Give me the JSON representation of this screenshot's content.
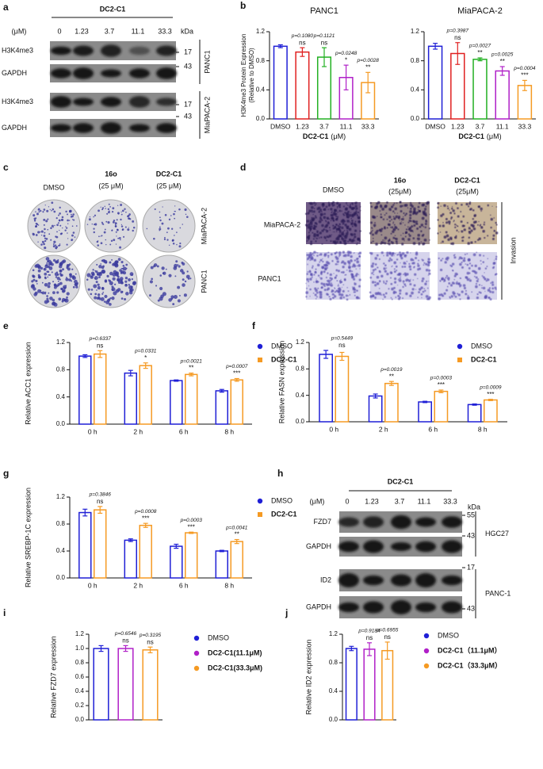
{
  "figure": {
    "panel_labels": [
      "a",
      "b",
      "c",
      "d",
      "e",
      "f",
      "g",
      "h",
      "i",
      "j"
    ],
    "blot_a": {
      "title": "DC2-C1",
      "unit": "(μM)",
      "concentrations": [
        "0",
        "1.23",
        "3.7",
        "11.1",
        "33.3"
      ],
      "kda": "kDa",
      "rows": [
        {
          "label": "H3K4me3",
          "kda": "17"
        },
        {
          "label": "GAPDH",
          "kda": "43"
        },
        {
          "label": "H3K4me3",
          "kda": "17"
        },
        {
          "label": "GAPDH",
          "kda": "43"
        }
      ],
      "groups": [
        "PANC1",
        "MiaPACA-2"
      ]
    },
    "colony": {
      "conditions": [
        [
          "DMSO"
        ],
        [
          "16o",
          "(25 μM)"
        ],
        [
          "DC2-C1",
          "(25 μM)"
        ]
      ],
      "cell_lines": [
        "MiaPACA-2",
        "PANC1"
      ]
    },
    "invasion": {
      "conditions": [
        [
          "DMSO"
        ],
        [
          "16o",
          "(25μM)"
        ],
        [
          "DC2-C1",
          "(25μM)"
        ]
      ],
      "cell_lines": [
        "MiaPACA-2",
        "PANC1"
      ],
      "assay": "Invasion"
    },
    "blot_h": {
      "title": "DC2-C1",
      "unit": "(μM)",
      "concentrations": [
        "0",
        "1.23",
        "3.7",
        "11.1",
        "33.3"
      ],
      "kda": "kDa",
      "rows": [
        {
          "label": "FZD7",
          "kda": "55"
        },
        {
          "label": "GAPDH",
          "kda": "43"
        },
        {
          "label": "ID2",
          "kda": "17"
        },
        {
          "label": "GAPDH",
          "kda": "43"
        }
      ],
      "groups": [
        "HGC27",
        "PANC-1"
      ]
    }
  },
  "chart_data": [
    {
      "type": "bar",
      "title": "PANC1",
      "y_label": [
        "H3K4me3 Protein Expression",
        "(Relative to DMSO)"
      ],
      "x_label": [
        "DC2-C1",
        "(μM)"
      ],
      "categories": [
        "DMSO",
        "1.23",
        "3.7",
        "11.1",
        "33.3"
      ],
      "values": [
        1.0,
        0.92,
        0.85,
        0.57,
        0.5
      ],
      "errors": [
        0.02,
        0.06,
        0.13,
        0.17,
        0.14
      ],
      "colors": [
        "#1f1fd6",
        "#e02020",
        "#22b022",
        "#b020c8",
        "#f59a23"
      ],
      "p_values": [
        null,
        "p=0.1080",
        "p=0.1121",
        "p=0.0248",
        "p=0.0028"
      ],
      "significance": [
        null,
        "ns",
        "ns",
        "*",
        "**"
      ],
      "ylim": [
        0,
        1.2
      ],
      "yticks": [
        {
          "value": 0,
          "label": "0.0"
        },
        0.4,
        0.8,
        1.2
      ]
    },
    {
      "type": "bar",
      "title": "MiaPACA-2",
      "x_label": [
        "DC2-C1",
        "(μM)"
      ],
      "categories": [
        "DMSO",
        "1.23",
        "3.7",
        "11.1",
        "33.3"
      ],
      "values": [
        1.0,
        0.9,
        0.82,
        0.66,
        0.46
      ],
      "errors": [
        0.04,
        0.15,
        0.02,
        0.06,
        0.07
      ],
      "colors": [
        "#1f1fd6",
        "#e02020",
        "#22b022",
        "#b020c8",
        "#f59a23"
      ],
      "p_values": [
        null,
        "p=0.3987",
        "p=0.0027",
        "p=0.0025",
        "p=0.0004"
      ],
      "significance": [
        null,
        "ns",
        "**",
        "**",
        "***"
      ],
      "ylim": [
        0,
        1.2
      ],
      "yticks": [
        {
          "value": 0,
          "label": "0.0"
        },
        0.4,
        0.8,
        1.2
      ]
    },
    {
      "type": "bar",
      "y_label": "Relative ACC1 expression",
      "categories": [
        "0 h",
        "2 h",
        "6 h",
        "8 h"
      ],
      "series": [
        {
          "name": "DMSO",
          "color": "#1f1fd6",
          "marker": "circle",
          "values": [
            1.0,
            0.75,
            0.64,
            0.49
          ],
          "errors": [
            0.02,
            0.04,
            0.01,
            0.02
          ]
        },
        {
          "name": "DC2-C1",
          "color": "#f59a23",
          "marker": "square",
          "values": [
            1.03,
            0.86,
            0.73,
            0.65
          ],
          "errors": [
            0.05,
            0.04,
            0.02,
            0.02
          ]
        }
      ],
      "p_values": [
        "p=0.6337",
        "p=0.0331",
        "p=0.0021",
        "p=0.0007"
      ],
      "significance": [
        "ns",
        "*",
        "**",
        "***"
      ],
      "ylim": [
        0,
        1.2
      ],
      "yticks": [
        {
          "value": 0,
          "label": "0.0"
        },
        0.4,
        0.8,
        1.2
      ],
      "legend": "right"
    },
    {
      "type": "bar",
      "y_label": "Relative FASN expression",
      "categories": [
        "0 h",
        "2 h",
        "6 h",
        "8 h"
      ],
      "series": [
        {
          "name": "DMSO",
          "color": "#1f1fd6",
          "marker": "circle",
          "values": [
            1.02,
            0.39,
            0.3,
            0.26
          ],
          "errors": [
            0.06,
            0.03,
            0.01,
            0.01
          ]
        },
        {
          "name": "DC2-C1",
          "color": "#f59a23",
          "marker": "square",
          "values": [
            0.99,
            0.58,
            0.46,
            0.33
          ],
          "errors": [
            0.06,
            0.03,
            0.02,
            0.01
          ]
        }
      ],
      "p_values": [
        "p=0.5449",
        "p=0.0019",
        "p=0.0003",
        "p=0.0009"
      ],
      "significance": [
        "ns",
        "**",
        "***",
        "***"
      ],
      "ylim": [
        0,
        1.2
      ],
      "yticks": [
        {
          "value": 0,
          "label": "0.0"
        },
        0.4,
        0.8,
        1.2
      ],
      "legend": "right"
    },
    {
      "type": "bar",
      "y_label": "Relative SREBP-1C expression",
      "categories": [
        "0 h",
        "2 h",
        "6 h",
        "8 h"
      ],
      "series": [
        {
          "name": "DMSO",
          "color": "#1f1fd6",
          "marker": "circle",
          "values": [
            0.97,
            0.56,
            0.47,
            0.4
          ],
          "errors": [
            0.05,
            0.02,
            0.03,
            0.01
          ]
        },
        {
          "name": "DC2-C1",
          "color": "#f59a23",
          "marker": "square",
          "values": [
            1.01,
            0.78,
            0.67,
            0.54
          ],
          "errors": [
            0.05,
            0.03,
            0.01,
            0.03
          ]
        }
      ],
      "p_values": [
        "p=0.3846",
        "p=0.0008",
        "p=0.0003",
        "p=0.0041"
      ],
      "significance": [
        "ns",
        "***",
        "***",
        "**"
      ],
      "ylim": [
        0,
        1.2
      ],
      "yticks": [
        {
          "value": 0,
          "label": "0.0"
        },
        0.4,
        0.8,
        1.2
      ],
      "legend": "right"
    },
    {
      "type": "bar",
      "y_label": "Relative FZD7 expression",
      "series": [
        {
          "name": "DMSO",
          "color": "#1f1fd6",
          "marker": "circle",
          "values": [
            1.0
          ],
          "errors": [
            0.04
          ]
        },
        {
          "name": "DC2-C1(11.1μM)",
          "color": "#b020c8",
          "marker": "circle",
          "values": [
            1.0
          ],
          "errors": [
            0.04
          ]
        },
        {
          "name": "DC2-C1(33.3μM)",
          "color": "#f59a23",
          "marker": "circle",
          "values": [
            0.98
          ],
          "errors": [
            0.04
          ]
        }
      ],
      "p_values": [
        null,
        "p=0.6546",
        "p=0.3195"
      ],
      "significance": [
        null,
        "ns",
        "ns"
      ],
      "ylim": [
        0,
        1.2
      ],
      "yticks": [
        {
          "value": 0,
          "label": "0.0"
        },
        0.2,
        0.4,
        0.6,
        0.8,
        {
          "value": 1,
          "label": "1.0"
        },
        1.2
      ],
      "legend": "right"
    },
    {
      "type": "bar",
      "y_label": "Relative ID2 expression",
      "series": [
        {
          "name": "DMSO",
          "color": "#1f1fd6",
          "marker": "circle",
          "values": [
            1.0
          ],
          "errors": [
            0.03
          ]
        },
        {
          "name": "DC2-C1（11.1μM）",
          "color": "#b020c8",
          "marker": "circle",
          "values": [
            0.99
          ],
          "errors": [
            0.09
          ]
        },
        {
          "name": "DC2-C1（33.3μM）",
          "color": "#f59a23",
          "marker": "circle",
          "values": [
            0.97
          ],
          "errors": [
            0.12
          ]
        }
      ],
      "p_values": [
        null,
        "p=0.9184",
        "p=0.6955"
      ],
      "significance": [
        null,
        "ns",
        "ns"
      ],
      "ylim": [
        0,
        1.2
      ],
      "yticks": [
        {
          "value": 0,
          "label": "0.0"
        },
        0.4,
        0.8,
        1.2
      ],
      "legend": "right"
    }
  ]
}
